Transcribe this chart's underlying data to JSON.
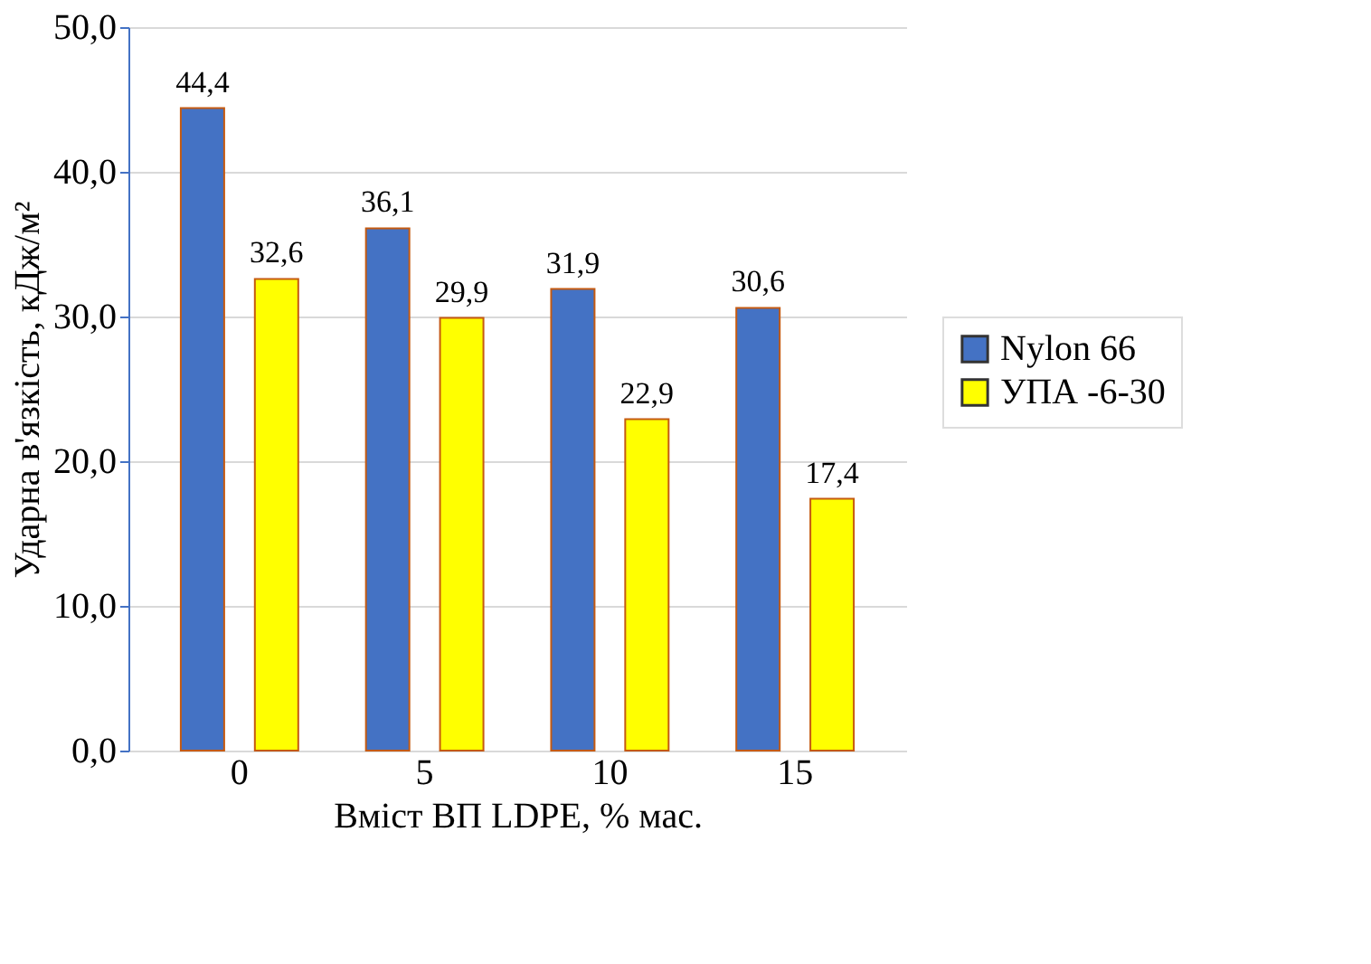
{
  "chart_data": {
    "type": "bar",
    "xlabel": "Вміст ВП LDPE, % мас.",
    "ylabel": "Ударна в'язкість, кДж/м²",
    "categories": [
      "0",
      "5",
      "10",
      "15"
    ],
    "series": [
      {
        "name": "Nylon 66",
        "color": "#4472c4",
        "values": [
          44.4,
          36.1,
          31.9,
          30.6
        ],
        "value_labels": [
          "44,4",
          "36,1",
          "31,9",
          "30,6"
        ]
      },
      {
        "name": "УПА -6-30",
        "color": "#ffff00",
        "values": [
          32.6,
          29.9,
          22.9,
          17.4
        ],
        "value_labels": [
          "32,6",
          "29,9",
          "22,9",
          "17,4"
        ]
      }
    ],
    "ylim": [
      0,
      50
    ],
    "yticks": [
      {
        "value": 0,
        "label": "0,0"
      },
      {
        "value": 10,
        "label": "10,0"
      },
      {
        "value": 20,
        "label": "20,0"
      },
      {
        "value": 30,
        "label": "30,0"
      },
      {
        "value": 40,
        "label": "40,0"
      },
      {
        "value": 50,
        "label": "50,0"
      }
    ],
    "grid": "y",
    "legend": "right"
  }
}
